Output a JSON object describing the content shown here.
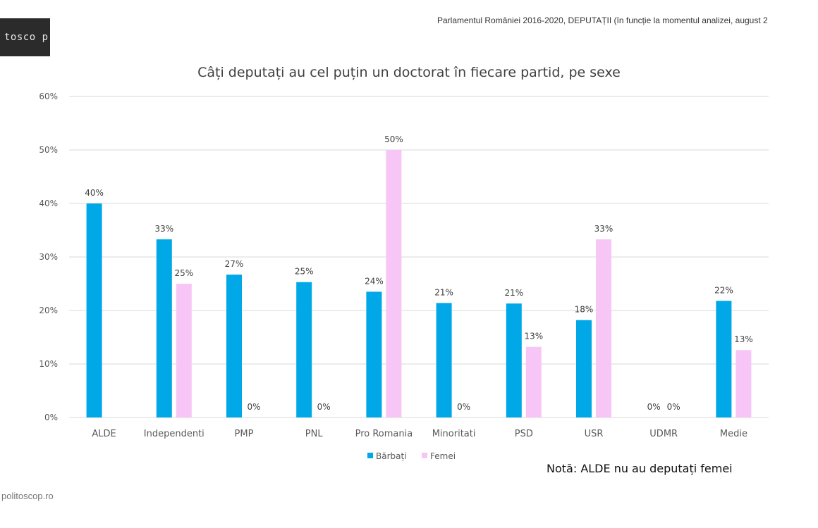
{
  "header": {
    "logo_text": "tosco p",
    "source_text": "Parlamentul României 2016-2020, DEPUTAȚII (în funcție la momentul analizei, august 2"
  },
  "footer": {
    "site": "politoscop.ro",
    "note": "Notă: ALDE nu au deputați femei"
  },
  "colors": {
    "men": "#00a8e8",
    "women": "#f7c6f7",
    "grid": "#d9d9d9"
  },
  "chart_data": {
    "type": "bar",
    "title": "Câți deputați au cel puțin un doctorat în fiecare partid, pe sexe",
    "categories": [
      "ALDE",
      "Independenti",
      "PMP",
      "PNL",
      "Pro Romania",
      "Minoritati",
      "PSD",
      "USR",
      "UDMR",
      "Medie"
    ],
    "series": [
      {
        "name": "Bărbați",
        "values": [
          40,
          33.3,
          26.7,
          25.3,
          23.5,
          21.4,
          21.3,
          18.2,
          0,
          21.8
        ],
        "labels": [
          "40%",
          "33%",
          "27%",
          "25%",
          "24%",
          "21%",
          "21%",
          "18%",
          "0%",
          "22%"
        ]
      },
      {
        "name": "Femei",
        "values": [
          null,
          25,
          0,
          0,
          50,
          0,
          13.2,
          33.3,
          0,
          12.6
        ],
        "labels": [
          "",
          "25%",
          "0%",
          "0%",
          "50%",
          "0%",
          "13%",
          "33%",
          "0%",
          "13%"
        ]
      }
    ],
    "yticks": [
      "0%",
      "10%",
      "20%",
      "30%",
      "40%",
      "50%",
      "60%"
    ],
    "ylim": [
      0,
      60
    ],
    "xlabel": "",
    "ylabel": "",
    "grid": true,
    "legend": "bottom-center"
  }
}
